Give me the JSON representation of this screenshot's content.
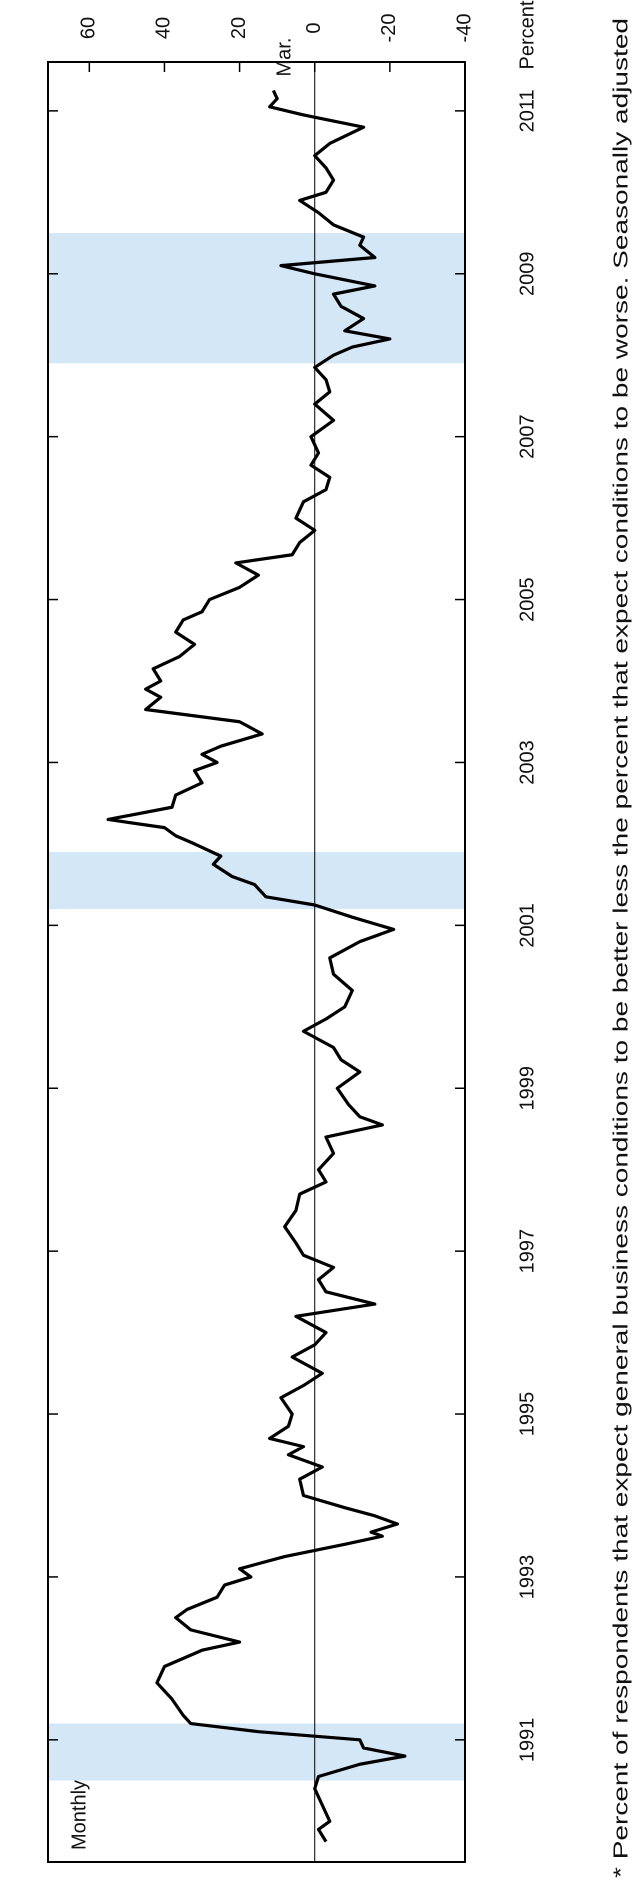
{
  "chart_data": {
    "type": "line",
    "annotations": {
      "unit": "Percent",
      "frequency": "Monthly",
      "last_point": "Mar.",
      "footnote": "* Percent of respondents that expect general business conditions to be better less the percent that expect conditions to be worse.  Seasonally adjusted"
    },
    "x": [
      1989.75,
      1989.9,
      1990.0,
      1990.2,
      1990.4,
      1990.55,
      1990.7,
      1990.8,
      1990.9,
      1991.0,
      1991.1,
      1991.2,
      1991.3,
      1991.5,
      1991.7,
      1991.9,
      1992.1,
      1992.2,
      1992.35,
      1992.5,
      1992.6,
      1992.75,
      1992.9,
      1993.0,
      1993.1,
      1993.25,
      1993.4,
      1993.5,
      1993.55,
      1993.65,
      1993.75,
      1993.85,
      1994.0,
      1994.2,
      1994.35,
      1994.5,
      1994.6,
      1994.7,
      1994.85,
      1995.0,
      1995.2,
      1995.35,
      1995.5,
      1995.7,
      1995.85,
      1996.0,
      1996.2,
      1996.35,
      1996.5,
      1996.65,
      1996.8,
      1996.95,
      1997.1,
      1997.3,
      1997.5,
      1997.7,
      1997.85,
      1998.0,
      1998.2,
      1998.4,
      1998.55,
      1998.65,
      1998.8,
      1999.0,
      1999.2,
      1999.35,
      1999.5,
      1999.7,
      1999.85,
      2000.0,
      2000.2,
      2000.4,
      2000.6,
      2000.8,
      2000.95,
      2001.1,
      2001.25,
      2001.35,
      2001.5,
      2001.6,
      2001.75,
      2001.85,
      2002.0,
      2002.1,
      2002.2,
      2002.3,
      2002.45,
      2002.6,
      2002.75,
      2002.9,
      2003.0,
      2003.1,
      2003.2,
      2003.35,
      2003.5,
      2003.65,
      2003.8,
      2003.9,
      2004.0,
      2004.15,
      2004.3,
      2004.45,
      2004.6,
      2004.75,
      2004.85,
      2005.0,
      2005.15,
      2005.3,
      2005.45,
      2005.55,
      2005.7,
      2005.85,
      2006.0,
      2006.2,
      2006.35,
      2006.5,
      2006.65,
      2006.8,
      2007.0,
      2007.2,
      2007.4,
      2007.55,
      2007.7,
      2007.85,
      2008.0,
      2008.1,
      2008.2,
      2008.3,
      2008.45,
      2008.6,
      2008.75,
      2008.85,
      2009.0,
      2009.1,
      2009.2,
      2009.35,
      2009.45,
      2009.6,
      2009.75,
      2009.9,
      2010.0,
      2010.15,
      2010.3,
      2010.45,
      2010.6,
      2010.8,
      2010.95,
      2011.05,
      2011.15,
      2011.25
    ],
    "values": [
      -3,
      -1,
      -4,
      -2,
      0,
      -1,
      -12,
      -24,
      -13,
      -12,
      15,
      33,
      35,
      38,
      42,
      40,
      30,
      20,
      33,
      37,
      34,
      26,
      24,
      17,
      20,
      8,
      -8,
      -18,
      -15,
      -22,
      -16,
      -8,
      3,
      4,
      -2,
      7,
      3,
      12,
      7,
      6,
      9,
      3,
      -2,
      6,
      0,
      -3,
      5,
      -16,
      -3,
      -1,
      -5,
      3,
      5,
      8,
      5,
      4,
      -3,
      -1,
      -5,
      -3,
      -18,
      -12,
      -9,
      -6,
      -12,
      -7,
      -5,
      3,
      -3,
      -8,
      -10,
      -5,
      -4,
      -12,
      -21,
      -10,
      0,
      13,
      16,
      22,
      27,
      25,
      32,
      37,
      40,
      55,
      38,
      37,
      30,
      32,
      26,
      30,
      25,
      14,
      20,
      45,
      41,
      45,
      41,
      43,
      36,
      32,
      37,
      35,
      30,
      28,
      20,
      15,
      21,
      6,
      4,
      0,
      5,
      3,
      -3,
      -4,
      1,
      -1,
      1,
      -5,
      0,
      -4,
      -3,
      0,
      -5,
      -10,
      -20,
      -8,
      -13,
      -7,
      -5,
      -16,
      0,
      9,
      -16,
      -12,
      -13,
      -5,
      -1,
      4,
      -3,
      -5,
      -3,
      0,
      -4,
      -13,
      3,
      12,
      10,
      11
    ],
    "color": "#000000",
    "shaded_periods": [
      [
        1990.5,
        1991.2
      ],
      [
        2001.2,
        2001.9
      ],
      [
        2007.9,
        2009.5
      ]
    ],
    "shade_color": "#d4e7f7",
    "xlim": [
      1989.5,
      2011.6
    ],
    "xticks": [
      1991,
      1993,
      1995,
      1997,
      1999,
      2001,
      2003,
      2005,
      2007,
      2009,
      2011
    ],
    "ylim": [
      -40,
      71
    ],
    "yticks": [
      -40,
      -20,
      0,
      20,
      40,
      60
    ],
    "zero_line": true
  }
}
